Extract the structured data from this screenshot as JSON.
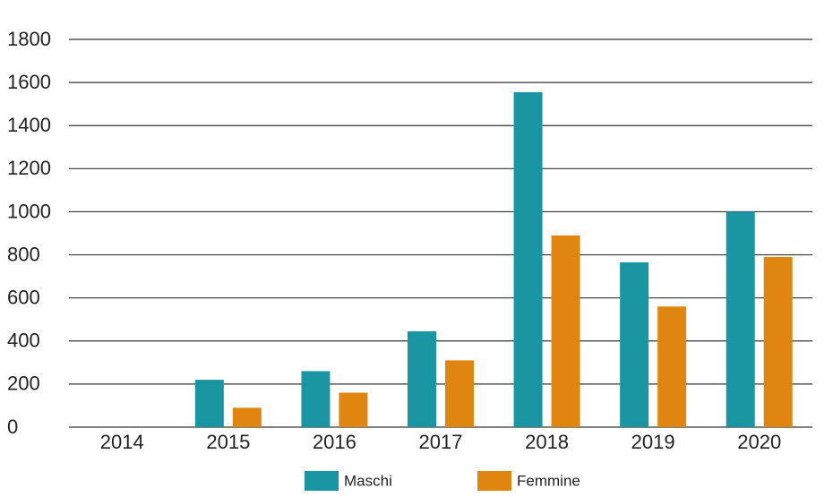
{
  "chart_data": {
    "type": "bar",
    "title": "",
    "xlabel": "",
    "ylabel": "",
    "categories": [
      "2014",
      "2015",
      "2016",
      "2017",
      "2018",
      "2019",
      "2020"
    ],
    "series": [
      {
        "name": "Maschi",
        "color": "#1a96a3",
        "values": [
          0,
          220,
          260,
          445,
          1555,
          765,
          1000
        ]
      },
      {
        "name": "Femmine",
        "color": "#e08510",
        "values": [
          0,
          90,
          160,
          310,
          890,
          560,
          790
        ]
      }
    ],
    "ylim": [
      0,
      1800
    ],
    "yticks": [
      0,
      200,
      400,
      600,
      800,
      1000,
      1200,
      1400,
      1600,
      1800
    ],
    "grid": true,
    "legend_position": "bottom-center"
  }
}
